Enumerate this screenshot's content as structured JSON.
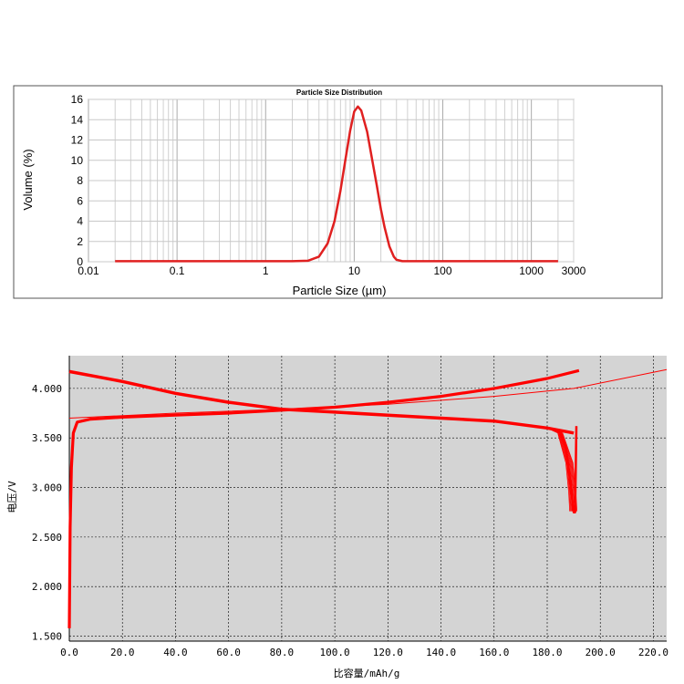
{
  "chart_data": [
    {
      "type": "line",
      "title": "Particle Size Distribution",
      "xlabel": "Particle Size (µm)",
      "ylabel": "Volume (%)",
      "xscale": "log",
      "xlim": [
        0.01,
        3000
      ],
      "ylim": [
        0,
        16
      ],
      "xticks": [
        "0.01",
        "0.1",
        "1",
        "10",
        "100",
        "1000",
        "3000"
      ],
      "yticks": [
        "0",
        "2",
        "4",
        "6",
        "8",
        "10",
        "12",
        "14",
        "16"
      ],
      "grid": true,
      "series_color": "#e02020",
      "x": [
        0.02,
        1.0,
        2.0,
        3.0,
        4.0,
        5.0,
        6.0,
        7.0,
        8.0,
        9.0,
        10.0,
        11.0,
        12.0,
        14.0,
        16.0,
        18.0,
        20.0,
        22.0,
        25.0,
        28.0,
        30.0,
        35.0,
        100.0,
        2000.0
      ],
      "y": [
        0.05,
        0.05,
        0.05,
        0.1,
        0.5,
        1.8,
        4.0,
        7.0,
        10.2,
        12.9,
        14.8,
        15.3,
        14.9,
        12.8,
        10.0,
        7.5,
        5.2,
        3.4,
        1.5,
        0.5,
        0.2,
        0.05,
        0.05,
        0.05
      ]
    },
    {
      "type": "line",
      "xlabel": "比容量/mAh/g",
      "ylabel": "电压/V",
      "xlim": [
        0,
        225
      ],
      "ylim": [
        1.45,
        4.33
      ],
      "xticks": [
        "0.0",
        "20.0",
        "40.0",
        "60.0",
        "80.0",
        "100.0",
        "120.0",
        "140.0",
        "160.0",
        "180.0",
        "200.0",
        "220.0"
      ],
      "yticks": [
        "1.500",
        "2.000",
        "2.500",
        "3.000",
        "3.500",
        "4.000"
      ],
      "grid": true,
      "background": "#d4d4d4",
      "series_color": "#ff0000",
      "series": [
        {
          "x": [
            0,
            10,
            20,
            40,
            60,
            80,
            100,
            120,
            140,
            160,
            180,
            190
          ],
          "y": [
            4.17,
            4.12,
            4.07,
            3.95,
            3.86,
            3.79,
            3.76,
            3.73,
            3.7,
            3.67,
            3.6,
            3.55
          ]
        },
        {
          "x": [
            185,
            187,
            188,
            189,
            189.5,
            190,
            190.5,
            191
          ],
          "y": [
            3.55,
            3.4,
            3.2,
            3.0,
            2.85,
            2.75,
            2.75,
            3.62
          ]
        },
        {
          "x": [
            0,
            0.3,
            0.8,
            1.5,
            3,
            8,
            20,
            40,
            60,
            80,
            100,
            120,
            140,
            160,
            180,
            192
          ],
          "y": [
            1.58,
            2.6,
            3.2,
            3.55,
            3.66,
            3.69,
            3.71,
            3.73,
            3.75,
            3.78,
            3.81,
            3.86,
            3.92,
            4.0,
            4.1,
            4.18
          ]
        },
        {
          "x": [
            0,
            40,
            80,
            120,
            160,
            190,
            225
          ],
          "y": [
            3.7,
            3.75,
            3.79,
            3.84,
            3.92,
            4.0,
            4.19
          ]
        }
      ]
    }
  ]
}
